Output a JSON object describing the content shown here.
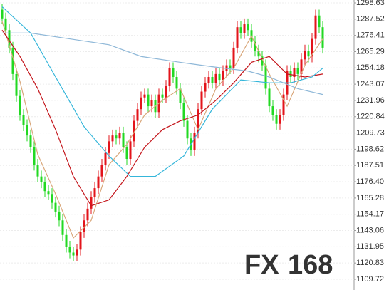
{
  "chart_data": {
    "type": "candlestick",
    "ylim": [
      1109.72,
      1298.63
    ],
    "yticks": [
      1109.72,
      1120.83,
      1131.95,
      1143.06,
      1154.17,
      1165.28,
      {
        "value": 1176.4,
        "label": "1176.40"
      },
      1187.51,
      1198.62,
      1209.73,
      1220.84,
      1231.96,
      1243.07,
      1254.18,
      1265.29,
      1276.41,
      1287.52,
      1298.63
    ],
    "grid": true,
    "up_color": "#e3141b",
    "down_color": "#22d922",
    "candles": {
      "open": [
        1294,
        1288,
        1280,
        1268,
        1250,
        1235,
        1222,
        1215,
        1208,
        1200,
        1188,
        1180,
        1176,
        1170,
        1168,
        1162,
        1156,
        1150,
        1140,
        1132,
        1128,
        1126,
        1130,
        1142,
        1150,
        1158,
        1166,
        1172,
        1180,
        1188,
        1196,
        1204,
        1208,
        1206,
        1210,
        1200,
        1192,
        1204,
        1218,
        1226,
        1234,
        1236,
        1228,
        1232,
        1224,
        1236,
        1234,
        1242,
        1254,
        1248,
        1240,
        1230,
        1218,
        1206,
        1198,
        1210,
        1226,
        1238,
        1244,
        1248,
        1244,
        1250,
        1246,
        1252,
        1256,
        1254,
        1268,
        1282,
        1278,
        1284,
        1280,
        1272,
        1266,
        1262,
        1256,
        1240,
        1228,
        1222,
        1216,
        1222,
        1236,
        1252,
        1248,
        1254,
        1250,
        1260,
        1266,
        1262,
        1274,
        1290,
        1282
      ],
      "high": [
        1298,
        1292,
        1284,
        1272,
        1254,
        1239,
        1226,
        1219,
        1212,
        1204,
        1192,
        1184,
        1180,
        1174,
        1172,
        1166,
        1160,
        1154,
        1144,
        1136,
        1132,
        1134,
        1146,
        1154,
        1162,
        1170,
        1176,
        1184,
        1192,
        1200,
        1208,
        1212,
        1212,
        1214,
        1214,
        1204,
        1208,
        1222,
        1230,
        1238,
        1240,
        1240,
        1236,
        1236,
        1240,
        1240,
        1246,
        1258,
        1258,
        1252,
        1244,
        1234,
        1222,
        1210,
        1214,
        1230,
        1242,
        1248,
        1252,
        1252,
        1254,
        1254,
        1256,
        1260,
        1260,
        1272,
        1286,
        1286,
        1288,
        1288,
        1284,
        1276,
        1270,
        1266,
        1260,
        1244,
        1232,
        1226,
        1226,
        1240,
        1256,
        1256,
        1258,
        1258,
        1264,
        1270,
        1270,
        1278,
        1294,
        1294,
        1286
      ],
      "low": [
        1284,
        1276,
        1264,
        1246,
        1231,
        1218,
        1211,
        1204,
        1196,
        1184,
        1176,
        1172,
        1166,
        1164,
        1158,
        1152,
        1146,
        1136,
        1128,
        1124,
        1122,
        1122,
        1126,
        1138,
        1146,
        1154,
        1162,
        1168,
        1176,
        1184,
        1192,
        1200,
        1202,
        1202,
        1196,
        1188,
        1188,
        1200,
        1214,
        1222,
        1230,
        1224,
        1224,
        1220,
        1220,
        1230,
        1230,
        1238,
        1244,
        1236,
        1226,
        1214,
        1202,
        1194,
        1194,
        1206,
        1222,
        1234,
        1240,
        1240,
        1240,
        1242,
        1242,
        1248,
        1250,
        1250,
        1264,
        1274,
        1274,
        1276,
        1268,
        1262,
        1258,
        1252,
        1236,
        1224,
        1218,
        1212,
        1212,
        1218,
        1232,
        1244,
        1244,
        1246,
        1246,
        1256,
        1258,
        1258,
        1270,
        1278,
        1264
      ],
      "close": [
        1288,
        1280,
        1268,
        1250,
        1235,
        1222,
        1215,
        1208,
        1200,
        1188,
        1180,
        1176,
        1170,
        1168,
        1162,
        1156,
        1150,
        1140,
        1132,
        1128,
        1126,
        1130,
        1142,
        1150,
        1158,
        1166,
        1172,
        1180,
        1188,
        1196,
        1204,
        1208,
        1206,
        1210,
        1200,
        1192,
        1204,
        1218,
        1226,
        1234,
        1236,
        1228,
        1232,
        1224,
        1236,
        1234,
        1242,
        1254,
        1248,
        1240,
        1230,
        1218,
        1206,
        1198,
        1210,
        1226,
        1238,
        1244,
        1248,
        1244,
        1250,
        1246,
        1252,
        1256,
        1254,
        1268,
        1282,
        1278,
        1284,
        1280,
        1272,
        1266,
        1262,
        1256,
        1240,
        1228,
        1222,
        1216,
        1222,
        1236,
        1252,
        1248,
        1254,
        1250,
        1260,
        1266,
        1262,
        1274,
        1290,
        1282,
        1268
      ]
    },
    "series": [
      {
        "color": "#d9a77a",
        "x": [
          0,
          5,
          10,
          15,
          20,
          25,
          30,
          35,
          40,
          45,
          50,
          55,
          60,
          65,
          70,
          75,
          80,
          85,
          90
        ],
        "values": [
          1286,
          1245,
          1195,
          1168,
          1138,
          1150,
          1188,
          1202,
          1222,
          1232,
          1240,
          1212,
          1240,
          1254,
          1276,
          1250,
          1228,
          1256,
          1274
        ]
      },
      {
        "color": "#c4161c",
        "x": [
          0,
          5,
          10,
          15,
          20,
          25,
          30,
          35,
          40,
          45,
          50,
          55,
          60,
          65,
          70,
          75,
          80,
          85,
          90
        ],
        "values": [
          1280,
          1262,
          1240,
          1212,
          1180,
          1160,
          1164,
          1180,
          1200,
          1212,
          1218,
          1222,
          1232,
          1244,
          1258,
          1262,
          1250,
          1248,
          1250
        ]
      },
      {
        "color": "#35b6da",
        "x": [
          0,
          8,
          15,
          23,
          30,
          36,
          43,
          51,
          59,
          67,
          75,
          81,
          87,
          90
        ],
        "values": [
          1296,
          1278,
          1248,
          1214,
          1194,
          1180,
          1180,
          1194,
          1226,
          1246,
          1244,
          1244,
          1248,
          1254
        ]
      },
      {
        "color": "#8fb8d8",
        "x": [
          0,
          8,
          19,
          30,
          39,
          50,
          59,
          69,
          75,
          83,
          90
        ],
        "values": [
          1278,
          1278,
          1274,
          1270,
          1262,
          1258,
          1255,
          1252,
          1248,
          1240,
          1236
        ]
      }
    ],
    "watermark": [
      "FX",
      "168"
    ]
  }
}
